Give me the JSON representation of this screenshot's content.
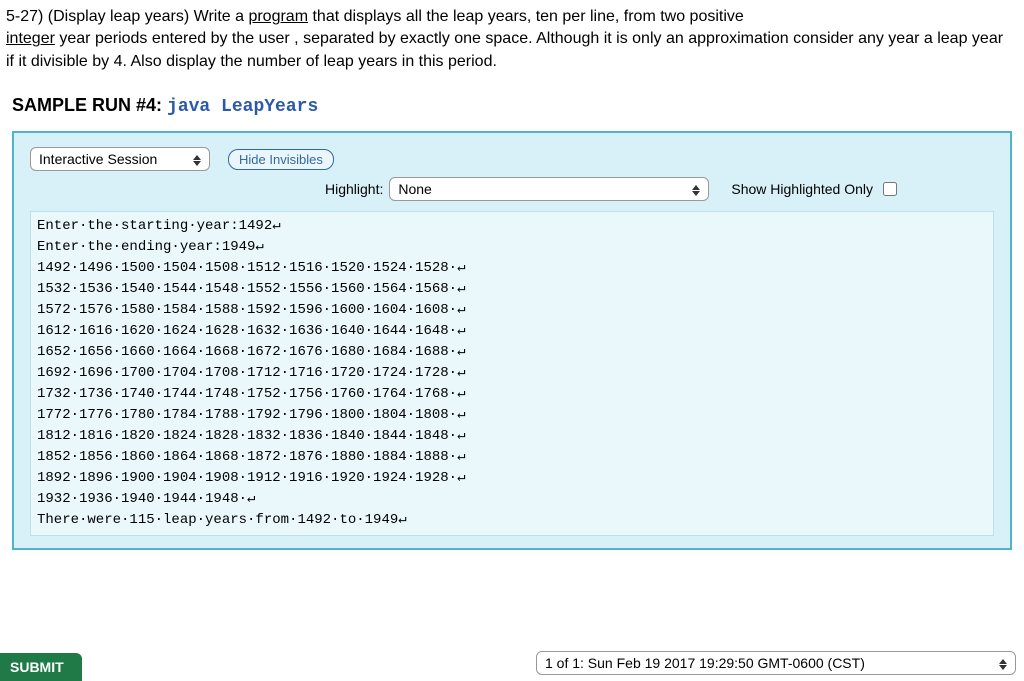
{
  "problem": {
    "prefix": "5-27) (Display leap years) Write a ",
    "u1": "program",
    "mid1": "  that displays all the leap years, ten per line, from two positive ",
    "u2": "integer",
    "mid2": "  year periods entered by the user , separated by exactly one space. Although it is only an approximation consider any year a leap year if it divisible by 4. Also display the number of leap years in this period."
  },
  "sample": {
    "label": "SAMPLE RUN #4: ",
    "command": "java LeapYears"
  },
  "controls": {
    "session_mode": "Interactive Session",
    "hide_invisibles": "Hide Invisibles",
    "highlight_label": "Highlight:",
    "highlight_value": "None",
    "show_only_label": "Show Highlighted Only"
  },
  "terminal": {
    "dot": "·",
    "ret": "↵",
    "lines": [
      {
        "segments": [
          "Enter",
          "the",
          "starting",
          "year:1492"
        ],
        "ret": true
      },
      {
        "segments": [
          "Enter",
          "the",
          "ending",
          "year:1949"
        ],
        "ret": true
      },
      {
        "segments": [
          "1492",
          "1496",
          "1500",
          "1504",
          "1508",
          "1512",
          "1516",
          "1520",
          "1524",
          "1528",
          ""
        ],
        "ret": true
      },
      {
        "segments": [
          "1532",
          "1536",
          "1540",
          "1544",
          "1548",
          "1552",
          "1556",
          "1560",
          "1564",
          "1568",
          ""
        ],
        "ret": true
      },
      {
        "segments": [
          "1572",
          "1576",
          "1580",
          "1584",
          "1588",
          "1592",
          "1596",
          "1600",
          "1604",
          "1608",
          ""
        ],
        "ret": true
      },
      {
        "segments": [
          "1612",
          "1616",
          "1620",
          "1624",
          "1628",
          "1632",
          "1636",
          "1640",
          "1644",
          "1648",
          ""
        ],
        "ret": true
      },
      {
        "segments": [
          "1652",
          "1656",
          "1660",
          "1664",
          "1668",
          "1672",
          "1676",
          "1680",
          "1684",
          "1688",
          ""
        ],
        "ret": true
      },
      {
        "segments": [
          "1692",
          "1696",
          "1700",
          "1704",
          "1708",
          "1712",
          "1716",
          "1720",
          "1724",
          "1728",
          ""
        ],
        "ret": true
      },
      {
        "segments": [
          "1732",
          "1736",
          "1740",
          "1744",
          "1748",
          "1752",
          "1756",
          "1760",
          "1764",
          "1768",
          ""
        ],
        "ret": true
      },
      {
        "segments": [
          "1772",
          "1776",
          "1780",
          "1784",
          "1788",
          "1792",
          "1796",
          "1800",
          "1804",
          "1808",
          ""
        ],
        "ret": true
      },
      {
        "segments": [
          "1812",
          "1816",
          "1820",
          "1824",
          "1828",
          "1832",
          "1836",
          "1840",
          "1844",
          "1848",
          ""
        ],
        "ret": true
      },
      {
        "segments": [
          "1852",
          "1856",
          "1860",
          "1864",
          "1868",
          "1872",
          "1876",
          "1880",
          "1884",
          "1888",
          ""
        ],
        "ret": true
      },
      {
        "segments": [
          "1892",
          "1896",
          "1900",
          "1904",
          "1908",
          "1912",
          "1916",
          "1920",
          "1924",
          "1928",
          ""
        ],
        "ret": true
      },
      {
        "segments": [
          "1932",
          "1936",
          "1940",
          "1944",
          "1948",
          ""
        ],
        "ret": true
      },
      {
        "segments": [
          "There",
          "were",
          "115",
          "leap",
          "years",
          "from",
          "1492",
          "to",
          "1949"
        ],
        "ret": true
      }
    ]
  },
  "footer": {
    "submit_label": "SUBMIT",
    "timestamp": "1 of 1: Sun Feb 19 2017 19:29:50 GMT-0600 (CST)"
  },
  "colors": {
    "box_border": "#4fb3c9",
    "box_bg": "#d8f0f7",
    "terminal_bg": "#eaf8fc",
    "terminal_border": "#b8e2ec",
    "command_color": "#2c5aa8",
    "pill_border": "#2f6aa3",
    "submit_bg": "#1f7a47"
  }
}
